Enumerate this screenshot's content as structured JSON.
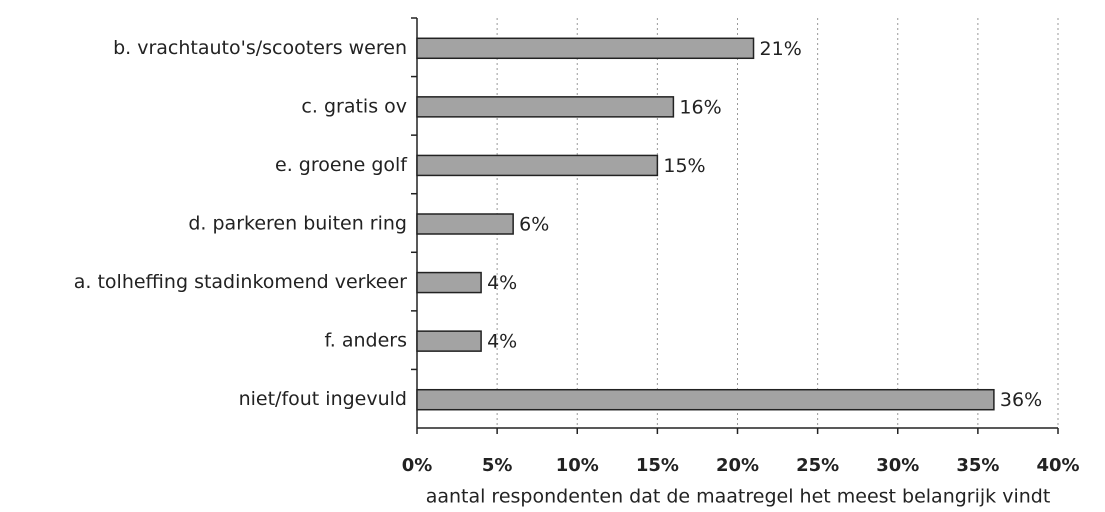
{
  "chart_data": {
    "type": "bar",
    "orientation": "horizontal",
    "categories": [
      "b. vrachtauto's/scooters weren",
      "c. gratis ov",
      "e. groene golf",
      "d. parkeren buiten ring",
      "a. tolheffing stadinkomend verkeer",
      "f. anders",
      "niet/fout ingevuld"
    ],
    "values": [
      21,
      16,
      15,
      6,
      4,
      4,
      36
    ],
    "value_labels": [
      "21%",
      "16%",
      "15%",
      "6%",
      "4%",
      "4%",
      "36%"
    ],
    "color": "#a3a3a3",
    "xlim": [
      0,
      40
    ],
    "xticks": [
      {
        "value": 0,
        "label": "0%"
      },
      {
        "value": 5,
        "label": "5%"
      },
      {
        "value": 10,
        "label": "10%"
      },
      {
        "value": 15,
        "label": "15%"
      },
      {
        "value": 20,
        "label": "20%"
      },
      {
        "value": 25,
        "label": "25%"
      },
      {
        "value": 30,
        "label": "30%"
      },
      {
        "value": 35,
        "label": "35%"
      },
      {
        "value": 40,
        "label": "40%"
      }
    ],
    "xlabel": "aantal respondenten dat de maatregel het meest belangrijk vindt",
    "grid": true
  }
}
